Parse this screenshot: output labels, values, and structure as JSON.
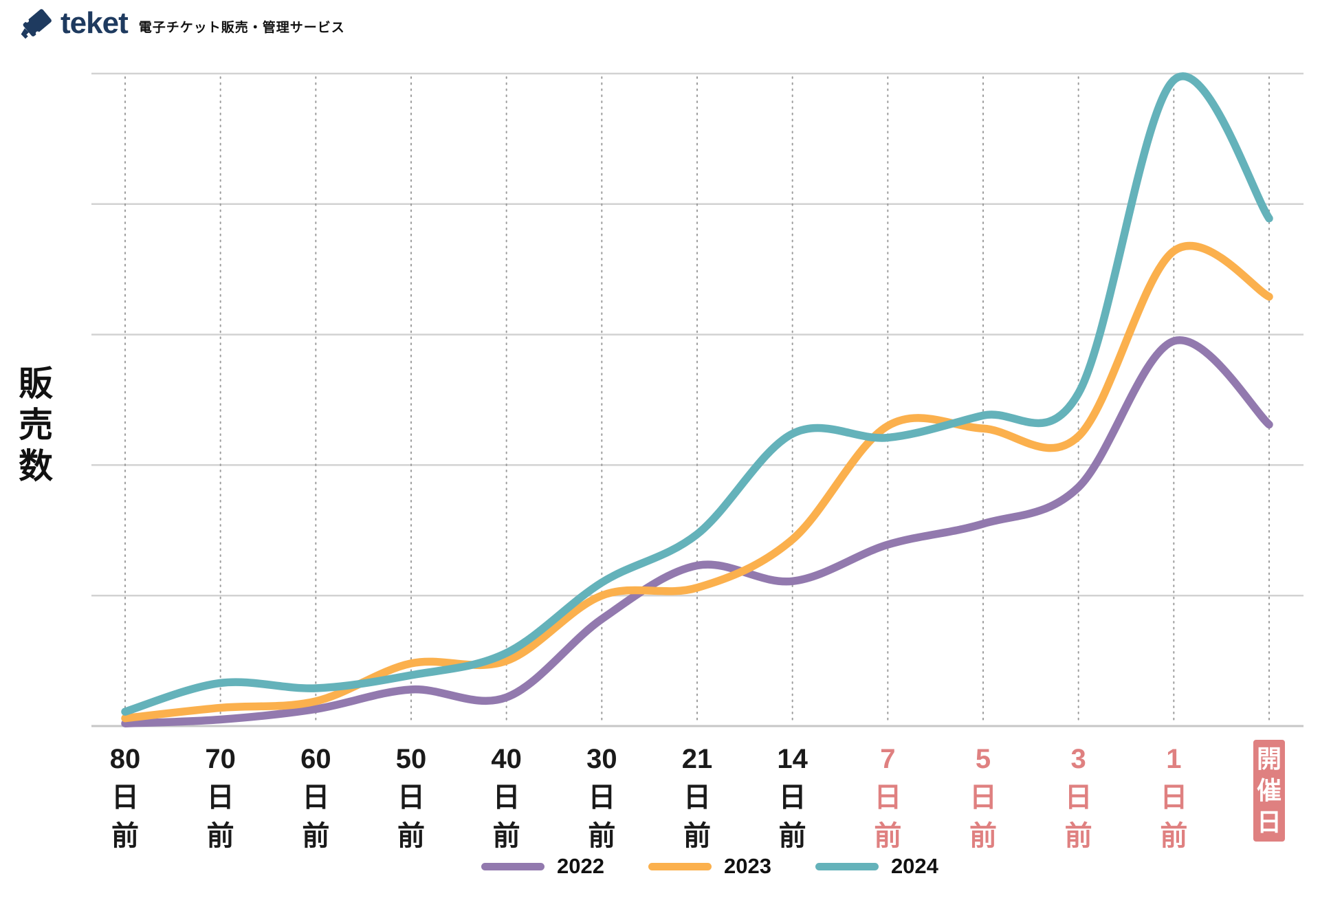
{
  "header": {
    "brand": "teket",
    "tagline": "電子チケット販売・管理サービス",
    "brand_color": "#1e3a5f"
  },
  "chart_data": {
    "type": "line",
    "title": "",
    "y_axis_label": "販売数",
    "ylim": [
      0,
      5
    ],
    "grid": {
      "horizontal_lines": 6,
      "vertical_style": "dotted",
      "legend_position": "bottom"
    },
    "highlight_color": "#df8080",
    "grid_color": "#d2d2d2",
    "dot_grid_color": "#9b9b9b",
    "axis_color": "#c6c6c6",
    "x_ticks": [
      {
        "label": "80日前",
        "lines": [
          "80",
          "日",
          "前"
        ],
        "highlighted": false,
        "boxed": false
      },
      {
        "label": "70日前",
        "lines": [
          "70",
          "日",
          "前"
        ],
        "highlighted": false,
        "boxed": false
      },
      {
        "label": "60日前",
        "lines": [
          "60",
          "日",
          "前"
        ],
        "highlighted": false,
        "boxed": false
      },
      {
        "label": "50日前",
        "lines": [
          "50",
          "日",
          "前"
        ],
        "highlighted": false,
        "boxed": false
      },
      {
        "label": "40日前",
        "lines": [
          "40",
          "日",
          "前"
        ],
        "highlighted": false,
        "boxed": false
      },
      {
        "label": "30日前",
        "lines": [
          "30",
          "日",
          "前"
        ],
        "highlighted": false,
        "boxed": false
      },
      {
        "label": "21日前",
        "lines": [
          "21",
          "日",
          "前"
        ],
        "highlighted": false,
        "boxed": false
      },
      {
        "label": "14日前",
        "lines": [
          "14",
          "日",
          "前"
        ],
        "highlighted": false,
        "boxed": false
      },
      {
        "label": "7日前",
        "lines": [
          "7",
          "日",
          "前"
        ],
        "highlighted": true,
        "boxed": false
      },
      {
        "label": "5日前",
        "lines": [
          "5",
          "日",
          "前"
        ],
        "highlighted": true,
        "boxed": false
      },
      {
        "label": "3日前",
        "lines": [
          "3",
          "日",
          "前"
        ],
        "highlighted": true,
        "boxed": false
      },
      {
        "label": "1日前",
        "lines": [
          "1",
          "日",
          "前"
        ],
        "highlighted": true,
        "boxed": false
      },
      {
        "label": "開催日",
        "lines": [
          "開",
          "催",
          "日"
        ],
        "highlighted": true,
        "boxed": true
      }
    ],
    "series": [
      {
        "name": "2022",
        "color": "#9279ae",
        "values": [
          0.02,
          0.05,
          0.13,
          0.28,
          0.22,
          0.82,
          1.23,
          1.11,
          1.39,
          1.55,
          1.83,
          2.95,
          2.31
        ]
      },
      {
        "name": "2023",
        "color": "#fbb04d",
        "values": [
          0.06,
          0.14,
          0.19,
          0.48,
          0.5,
          1.0,
          1.06,
          1.43,
          2.3,
          2.28,
          2.22,
          3.64,
          3.29
        ]
      },
      {
        "name": "2024",
        "color": "#64b2ba",
        "values": [
          0.11,
          0.33,
          0.29,
          0.39,
          0.56,
          1.1,
          1.47,
          2.24,
          2.21,
          2.38,
          2.55,
          4.95,
          3.89
        ]
      }
    ],
    "legend": {
      "entries": [
        "2022",
        "2023",
        "2024"
      ]
    }
  }
}
